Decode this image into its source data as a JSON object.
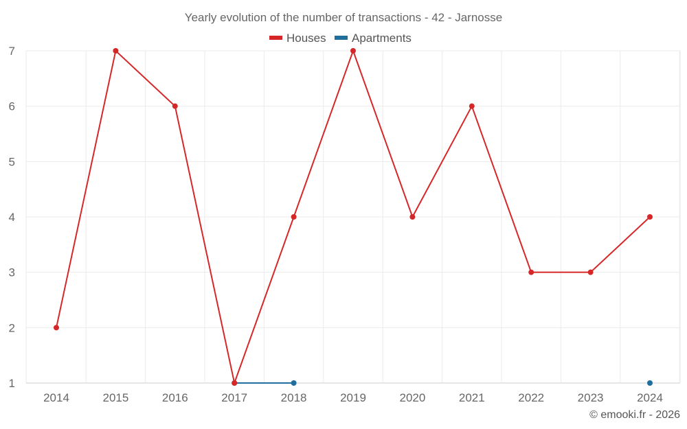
{
  "chart_data": {
    "type": "line",
    "title": "Yearly evolution of the number of transactions - 42 - Jarnosse",
    "x": [
      2014,
      2015,
      2016,
      2017,
      2018,
      2019,
      2020,
      2021,
      2022,
      2023,
      2024
    ],
    "x_tick_labels": [
      "2014",
      "2015",
      "2016",
      "2017",
      "2018",
      "2019",
      "2020",
      "2021",
      "2022",
      "2023",
      "2024"
    ],
    "y_tick_labels": [
      "1",
      "2",
      "3",
      "4",
      "5",
      "6",
      "7"
    ],
    "ylim": [
      1,
      7
    ],
    "grid": true,
    "legend_position": "top",
    "series": [
      {
        "name": "Houses",
        "color": "#d62728",
        "values": [
          2,
          7,
          6,
          1,
          4,
          7,
          4,
          6,
          3,
          3,
          4
        ]
      },
      {
        "name": "Apartments",
        "color": "#1f6e9c",
        "values": [
          null,
          null,
          null,
          1,
          1,
          null,
          null,
          null,
          null,
          null,
          1
        ]
      }
    ]
  },
  "credit": "© emooki.fr - 2026"
}
